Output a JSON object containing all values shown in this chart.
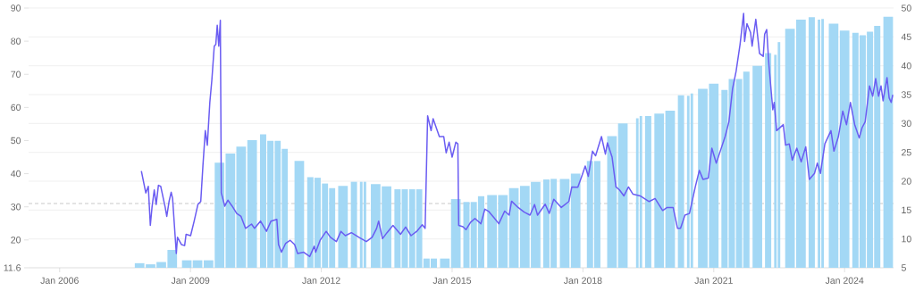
{
  "chart_data": {
    "type": "bar",
    "xlim": [
      "2005-04-16",
      "2025-02-15"
    ],
    "xticks": [
      {
        "value": "2006-01",
        "label": "Jan 2006"
      },
      {
        "value": "2009-01",
        "label": "Jan 2009"
      },
      {
        "value": "2012-01",
        "label": "Jan 2012"
      },
      {
        "value": "2015-01",
        "label": "Jan 2015"
      },
      {
        "value": "2018-01",
        "label": "Jan 2018"
      },
      {
        "value": "2021-01",
        "label": "Jan 2021"
      },
      {
        "value": "2024-01",
        "label": "Jan 2024"
      }
    ],
    "ylim": [
      5,
      50
    ],
    "yticks": [
      5,
      10,
      15,
      20,
      25,
      30,
      35,
      40,
      45,
      50
    ],
    "y2lim": [
      11.6,
      90
    ],
    "y2ticks": [
      11.6,
      20,
      30,
      40,
      50,
      60,
      70,
      80,
      90
    ],
    "grid": "y",
    "ref_lines": [
      {
        "axis": "y2",
        "value": 31,
        "color": "#c8c8c8",
        "line_style": "dashed"
      }
    ],
    "series": [
      {
        "color": "#a3d8f5",
        "x": [
          "2007-11",
          "2008-02",
          "2008-05",
          "2008-08",
          "2008-12",
          "2009-03",
          "2009-06",
          "2009-09",
          "2009-12",
          "2010-03",
          "2010-06",
          "2010-09",
          "2010-11",
          "2011-01",
          "2011-03",
          "2011-07",
          "2011-10",
          "2011-12",
          "2012-02",
          "2012-04",
          "2012-07",
          "2012-10",
          "2012-12",
          "2013-01",
          "2013-04",
          "2013-07",
          "2013-10",
          "2013-12",
          "2014-02",
          "2014-04",
          "2014-06",
          "2014-08",
          "2014-11",
          "2015-02",
          "2015-05",
          "2015-07",
          "2015-09",
          "2015-12",
          "2016-03",
          "2016-06",
          "2016-09",
          "2016-12",
          "2017-03",
          "2017-05",
          "2017-08",
          "2017-11",
          "2018-03",
          "2018-05",
          "2018-09",
          "2018-12",
          "2019-04",
          "2019-05",
          "2019-07",
          "2019-10",
          "2020-01",
          "2020-04",
          "2020-06",
          "2020-07",
          "2020-10",
          "2021-01",
          "2021-04",
          "2021-06",
          "2021-08",
          "2021-10",
          "2022-01",
          "2022-04",
          "2022-06",
          "2022-07",
          "2022-10",
          "2023-01",
          "2023-04",
          "2023-06",
          "2023-07",
          "2023-10",
          "2024-01",
          "2024-04",
          "2024-06",
          "2024-08",
          "2024-10",
          "2025-01"
        ],
        "values": [
          5.8,
          5.6,
          6.0,
          8.1,
          6.3,
          6.3,
          6.3,
          23.2,
          24.8,
          26.0,
          27.1,
          28.1,
          27.0,
          27.0,
          25.6,
          23.5,
          20.7,
          20.6,
          19.6,
          18.8,
          19.2,
          19.9,
          19.9,
          19.9,
          19.5,
          19.1,
          18.6,
          18.6,
          18.6,
          18.6,
          6.6,
          6.6,
          6.6,
          16.9,
          16.4,
          16.4,
          17.4,
          17.6,
          17.6,
          18.8,
          19.2,
          19.9,
          20.3,
          20.4,
          20.4,
          21.3,
          23.5,
          23.5,
          27.8,
          30.0,
          30.9,
          31.3,
          31.3,
          31.7,
          32.2,
          34.9,
          34.8,
          35.2,
          36.0,
          36.9,
          35.8,
          37.7,
          37.7,
          39.0,
          40.0,
          42.2,
          41.9,
          44.1,
          46.4,
          48.0,
          48.4,
          48.0,
          48.1,
          47.3,
          46.1,
          45.7,
          45.3,
          45.9,
          46.9,
          48.5
        ]
      },
      {
        "type": "line",
        "axis": "y2",
        "color": "#6a5cf2",
        "x": [
          "2007-11-16",
          "2007-12-23",
          "2008-01-13",
          "2008-01-30",
          "2008-02-13",
          "2008-03-03",
          "2008-03-19",
          "2008-04-07",
          "2008-04-26",
          "2008-06-03",
          "2008-06-16",
          "2008-07-05",
          "2008-07-23",
          "2008-08-04",
          "2008-09-04",
          "2008-09-14",
          "2008-10-18",
          "2008-11-13",
          "2008-11-25",
          "2009-01-02",
          "2009-02-01",
          "2009-03-04",
          "2009-03-28",
          "2009-04-15",
          "2009-05-05",
          "2009-05-22",
          "2009-06-12",
          "2009-06-29",
          "2009-07-19",
          "2009-08-01",
          "2009-08-13",
          "2009-08-26",
          "2009-09-08",
          "2009-09-16",
          "2009-10-15",
          "2009-11-10",
          "2009-12-16",
          "2010-01-23",
          "2010-02-28",
          "2010-04-07",
          "2010-05-27",
          "2010-06-21",
          "2010-08-10",
          "2010-09-29",
          "2010-11-06",
          "2010-12-25",
          "2011-01-08",
          "2011-02-02",
          "2011-03-09",
          "2011-04-16",
          "2011-05-23",
          "2011-06-17",
          "2011-08-07",
          "2011-09-26",
          "2011-11-03",
          "2011-11-15",
          "2011-12-22",
          "2012-02-11",
          "2012-03-18",
          "2012-05-07",
          "2012-06-14",
          "2012-07-21",
          "2012-09-10",
          "2012-11-12",
          "2013-01-13",
          "2013-03-02",
          "2013-04-09",
          "2013-04-26",
          "2013-05-28",
          "2013-07-05",
          "2013-08-24",
          "2013-10-26",
          "2013-12-08",
          "2014-01-22",
          "2014-03-11",
          "2014-04-26",
          "2014-05-20",
          "2014-06-10",
          "2014-07-09",
          "2014-07-26",
          "2014-09-16",
          "2014-10-23",
          "2014-11-12",
          "2014-12-07",
          "2015-01-01",
          "2015-02-01",
          "2015-02-18",
          "2015-02-25",
          "2015-04-02",
          "2015-04-27",
          "2015-06-04",
          "2015-07-11",
          "2015-08-30",
          "2015-10-02",
          "2015-11-01",
          "2015-12-20",
          "2016-01-27",
          "2016-03-16",
          "2016-04-23",
          "2016-05-13",
          "2016-07-07",
          "2016-08-27",
          "2016-10-15",
          "2016-11-22",
          "2016-12-17",
          "2017-02-19",
          "2017-03-25",
          "2017-05-02",
          "2017-07-04",
          "2017-09-05",
          "2017-09-30",
          "2017-11-19",
          "2017-12-26",
          "2018-01-20",
          "2018-02-15",
          "2018-03-22",
          "2018-04-17",
          "2018-06-05",
          "2018-07-08",
          "2018-07-25",
          "2018-09-02",
          "2018-10-04",
          "2018-11-03",
          "2018-12-10",
          "2019-01-17",
          "2019-02-24",
          "2019-04-25",
          "2019-07-09",
          "2019-08-28",
          "2019-10-30",
          "2019-12-07",
          "2020-01-26",
          "2020-03-03",
          "2020-03-28",
          "2020-05-04",
          "2020-06-11",
          "2020-07-30",
          "2020-09-02",
          "2020-10-02",
          "2020-11-16",
          "2020-12-16",
          "2021-01-22",
          "2021-02-28",
          "2021-04-06",
          "2021-05-08",
          "2021-06-07",
          "2021-07-07",
          "2021-08-09",
          "2021-09-08",
          "2021-09-16",
          "2021-10-06",
          "2021-11-05",
          "2021-11-18",
          "2021-12-19",
          "2022-01-19",
          "2022-02-19",
          "2022-03-03",
          "2022-03-20",
          "2022-04-08",
          "2022-05-10",
          "2022-05-22",
          "2022-06-11",
          "2022-08-06",
          "2022-08-25",
          "2022-09-25",
          "2022-10-20",
          "2022-11-27",
          "2023-01-03",
          "2023-02-10",
          "2023-03-12",
          "2023-04-24",
          "2023-05-18",
          "2023-06-13",
          "2023-07-20",
          "2023-09-09",
          "2023-10-04",
          "2023-11-10",
          "2023-12-17",
          "2024-01-17",
          "2024-02-19",
          "2024-03-26",
          "2024-05-03",
          "2024-05-27",
          "2024-06-22",
          "2024-07-28",
          "2024-08-24",
          "2024-09-18",
          "2024-10-12",
          "2024-11-02",
          "2024-11-19",
          "2024-12-22",
          "2025-01-09",
          "2025-01-26",
          "2025-02-08"
        ],
        "values": [
          40.8,
          34.2,
          36.2,
          24.4,
          29.8,
          35.1,
          30.7,
          36.5,
          36.2,
          29.8,
          27.1,
          31.6,
          34.4,
          32.5,
          15.9,
          20.8,
          18.6,
          18.3,
          21.7,
          21.3,
          25.7,
          30.7,
          31.6,
          42.3,
          53.0,
          48.6,
          61.5,
          68.3,
          78.5,
          79.0,
          84.8,
          78.5,
          86.3,
          34.2,
          30.2,
          32.0,
          30.2,
          28.0,
          27.1,
          23.5,
          24.8,
          23.5,
          25.7,
          22.6,
          25.7,
          26.2,
          18.6,
          16.3,
          19.0,
          19.9,
          18.6,
          15.9,
          16.3,
          15.0,
          18.1,
          16.3,
          19.9,
          22.6,
          20.8,
          19.5,
          22.6,
          21.3,
          22.2,
          20.8,
          19.5,
          20.8,
          23.5,
          25.7,
          20.4,
          22.2,
          24.4,
          21.7,
          23.9,
          21.3,
          22.6,
          24.6,
          23.5,
          57.5,
          53.0,
          56.6,
          51.2,
          51.2,
          46.3,
          49.5,
          45.0,
          49.5,
          49.0,
          24.4,
          24.0,
          23.1,
          25.3,
          26.5,
          24.9,
          29.3,
          28.7,
          26.6,
          24.9,
          28.7,
          27.5,
          31.7,
          29.8,
          28.4,
          27.5,
          30.7,
          27.5,
          30.8,
          28.0,
          32.3,
          29.8,
          31.6,
          36.0,
          35.9,
          39.6,
          42.3,
          39.2,
          46.8,
          45.4,
          51.2,
          45.9,
          49.3,
          45.0,
          36.0,
          35.1,
          33.3,
          36.0,
          33.8,
          33.3,
          31.6,
          32.5,
          28.9,
          29.8,
          29.8,
          23.5,
          23.5,
          27.5,
          28.0,
          36.0,
          41.0,
          38.3,
          38.7,
          47.7,
          43.2,
          47.2,
          51.2,
          55.7,
          65.6,
          70.9,
          79.0,
          88.4,
          79.9,
          85.3,
          82.6,
          78.5,
          86.6,
          76.3,
          75.4,
          82.1,
          83.5,
          72.7,
          59.3,
          61.5,
          53.0,
          54.8,
          48.6,
          49.0,
          44.1,
          47.7,
          43.6,
          48.1,
          38.3,
          40.1,
          43.2,
          40.1,
          49.0,
          53.0,
          46.8,
          51.2,
          58.9,
          54.8,
          61.5,
          54.8,
          50.8,
          53.9,
          55.7,
          66.5,
          63.4,
          68.7,
          63.4,
          66.5,
          62.0,
          69.0,
          62.9,
          61.5,
          63.8
        ]
      }
    ]
  }
}
